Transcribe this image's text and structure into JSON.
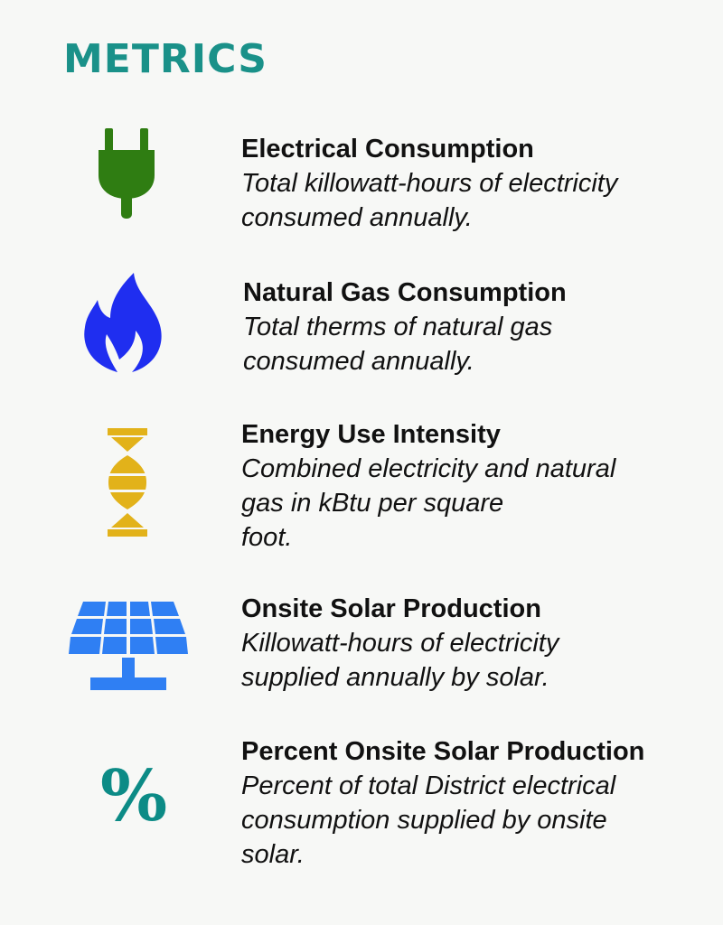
{
  "page": {
    "title": "METRICS"
  },
  "colors": {
    "title": "#1a9189",
    "plug": "#2f7d12",
    "flame": "#1f2ef0",
    "eui": "#e2b21a",
    "solar": "#2f7ff3",
    "percent": "#0c8b86"
  },
  "metrics": [
    {
      "icon": "plug-icon",
      "title": "Electrical Consumption",
      "desc": [
        "Total killowatt-hours of electricity",
        "consumed annually."
      ]
    },
    {
      "icon": "flame-icon",
      "title": "Natural Gas Consumption",
      "desc": [
        "Total therms of natural gas",
        "consumed annually."
      ]
    },
    {
      "icon": "energy-intensity-icon",
      "title": "Energy Use Intensity",
      "desc": [
        "Combined electricity and natural",
        "gas in kBtu per square",
        "foot."
      ]
    },
    {
      "icon": "solar-panel-icon",
      "title": "Onsite Solar Production",
      "desc": [
        "Killowatt-hours of electricity",
        "supplied annually by solar."
      ]
    },
    {
      "icon": "percent-icon",
      "glyph": "%",
      "title": "Percent Onsite Solar Production",
      "desc": [
        "Percent of total District electrical",
        "consumption supplied by onsite",
        "solar."
      ]
    }
  ]
}
